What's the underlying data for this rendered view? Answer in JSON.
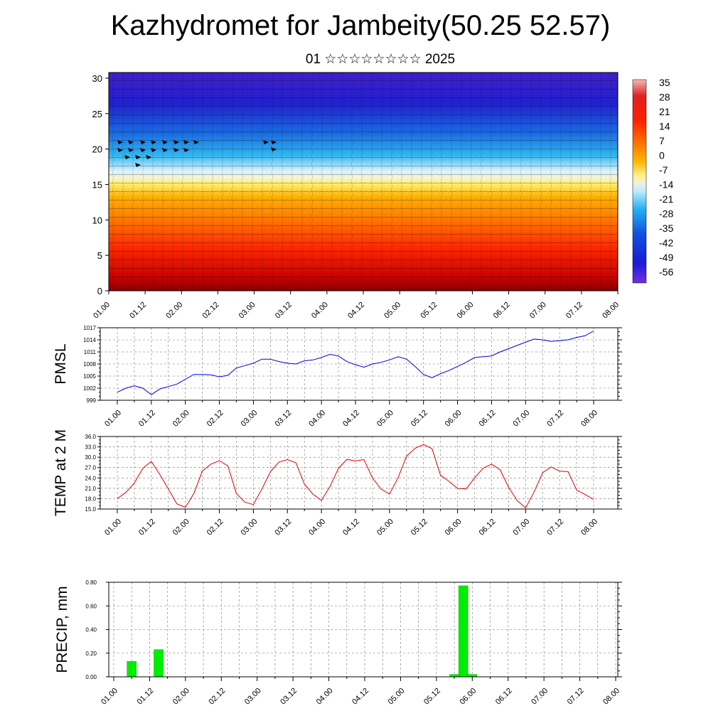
{
  "title": "Kazhydromet for Jambeity(50.25 52.57)",
  "subtitle": "01 ☆☆☆☆☆☆☆☆ 2025",
  "chart_data": [
    {
      "type": "heatmap",
      "name": "temperature-wind-cross-section",
      "x_tick_labels": [
        "01.00",
        "01.12",
        "02.00",
        "02.12",
        "03.00",
        "03.12",
        "04.00",
        "04.12",
        "05.00",
        "05.12",
        "06.00",
        "06.12",
        "07.00",
        "07.12",
        "08.00"
      ],
      "y_ticks": [
        0,
        5,
        10,
        15,
        20,
        25,
        30
      ],
      "ylim": [
        0,
        30.8
      ],
      "colorbar": {
        "labels": [
          "35",
          "28",
          "21",
          "14",
          "7",
          "0",
          "-7",
          "-14",
          "-21",
          "-28",
          "-35",
          "-42",
          "-49",
          "-56"
        ],
        "range": [
          -60,
          38
        ]
      },
      "wind_barbs": true
    },
    {
      "type": "line",
      "ylabel": "PMSL",
      "x_tick_labels": [
        "01.00",
        "01.12",
        "02.00",
        "02.12",
        "03.00",
        "03.12",
        "04.00",
        "04.12",
        "05.00",
        "05.12",
        "06.00",
        "06.12",
        "07.00",
        "07.12",
        "08.00"
      ],
      "y_ticks": [
        999,
        1002,
        1005,
        1008,
        1011,
        1014,
        1017
      ],
      "ylim": [
        999,
        1017
      ],
      "color": "#0000dd",
      "x": [
        0,
        3,
        6,
        9,
        12,
        15,
        18,
        21,
        24,
        27,
        30,
        33,
        36,
        39,
        42,
        45,
        48,
        51,
        54,
        57,
        60,
        63,
        66,
        69,
        72,
        75,
        78,
        81,
        84,
        87,
        90,
        93,
        96,
        99,
        102,
        105,
        108,
        111,
        114,
        117,
        120,
        123,
        126,
        129,
        132,
        135,
        138,
        141,
        144,
        147,
        150,
        153,
        156,
        159,
        162,
        165,
        168
      ],
      "values": [
        1001.0,
        1002.0,
        1002.6,
        1002.0,
        1000.4,
        1001.8,
        1002.4,
        1003.0,
        1004.2,
        1005.4,
        1005.4,
        1005.3,
        1004.8,
        1005.2,
        1007.0,
        1007.6,
        1008.2,
        1009.2,
        1009.2,
        1008.6,
        1008.2,
        1008.0,
        1008.8,
        1009.0,
        1009.6,
        1010.4,
        1010.0,
        1008.6,
        1007.8,
        1007.2,
        1008.0,
        1008.4,
        1009.0,
        1009.8,
        1009.2,
        1007.4,
        1005.4,
        1004.6,
        1005.6,
        1006.4,
        1007.4,
        1008.4,
        1009.6,
        1009.8,
        1010.0,
        1011.0,
        1011.8,
        1012.6,
        1013.4,
        1014.2,
        1014.0,
        1013.6,
        1013.8,
        1014.0,
        1014.6,
        1015.0,
        1016.2
      ]
    },
    {
      "type": "line",
      "ylabel": "TEMP at 2 M",
      "x_tick_labels": [
        "01.00",
        "01.12",
        "02.00",
        "02.12",
        "03.00",
        "03.12",
        "04.00",
        "04.12",
        "05.00",
        "05.12",
        "06.00",
        "06.12",
        "07.00",
        "07.12",
        "08.00"
      ],
      "y_ticks": [
        "15.0",
        "18.0",
        "21.0",
        "24.0",
        "27.0",
        "30.0",
        "33.0",
        "36.0"
      ],
      "ylim": [
        15,
        36
      ],
      "color": "#dd0000",
      "x": [
        0,
        3,
        6,
        9,
        12,
        15,
        18,
        21,
        24,
        27,
        30,
        33,
        36,
        39,
        42,
        45,
        48,
        51,
        54,
        57,
        60,
        63,
        66,
        69,
        72,
        75,
        78,
        81,
        84,
        87,
        90,
        93,
        96,
        99,
        102,
        105,
        108,
        111,
        114,
        117,
        120,
        123,
        126,
        129,
        132,
        135,
        138,
        141,
        144,
        147,
        150,
        153,
        156,
        159,
        162,
        165,
        168
      ],
      "values": [
        18.0,
        19.8,
        22.5,
        26.8,
        28.8,
        25.0,
        20.8,
        16.5,
        15.5,
        19.5,
        26.0,
        28.0,
        29.0,
        27.5,
        19.5,
        17.0,
        16.3,
        20.8,
        25.8,
        28.6,
        29.3,
        28.4,
        22.2,
        19.3,
        17.5,
        21.5,
        26.8,
        29.4,
        28.9,
        29.3,
        24.0,
        20.8,
        19.3,
        24.0,
        30.3,
        32.6,
        33.7,
        32.5,
        24.8,
        23.0,
        21.0,
        20.8,
        24.0,
        26.8,
        28.0,
        26.4,
        21.3,
        17.5,
        15.3,
        20.0,
        25.5,
        27.2,
        26.0,
        25.8,
        20.5,
        19.2,
        17.8
      ]
    },
    {
      "type": "bar",
      "ylabel": "PRECIP, mm",
      "x_tick_labels": [
        "01.00",
        "01.12",
        "02.00",
        "02.12",
        "03.00",
        "03.12",
        "04.00",
        "04.12",
        "05.00",
        "05.12",
        "06.00",
        "06.12",
        "07.00",
        "07.12",
        "08.00"
      ],
      "y_ticks": [
        "0.00",
        "0.20",
        "0.40",
        "0.60",
        "0.80"
      ],
      "ylim": [
        0,
        0.8
      ],
      "color": "#00ee00",
      "bars": [
        {
          "x": 6,
          "value": 0.13
        },
        {
          "x": 15,
          "value": 0.23
        },
        {
          "x": 114,
          "value": 0.02
        },
        {
          "x": 117,
          "value": 0.77
        },
        {
          "x": 120,
          "value": 0.02
        }
      ]
    }
  ]
}
